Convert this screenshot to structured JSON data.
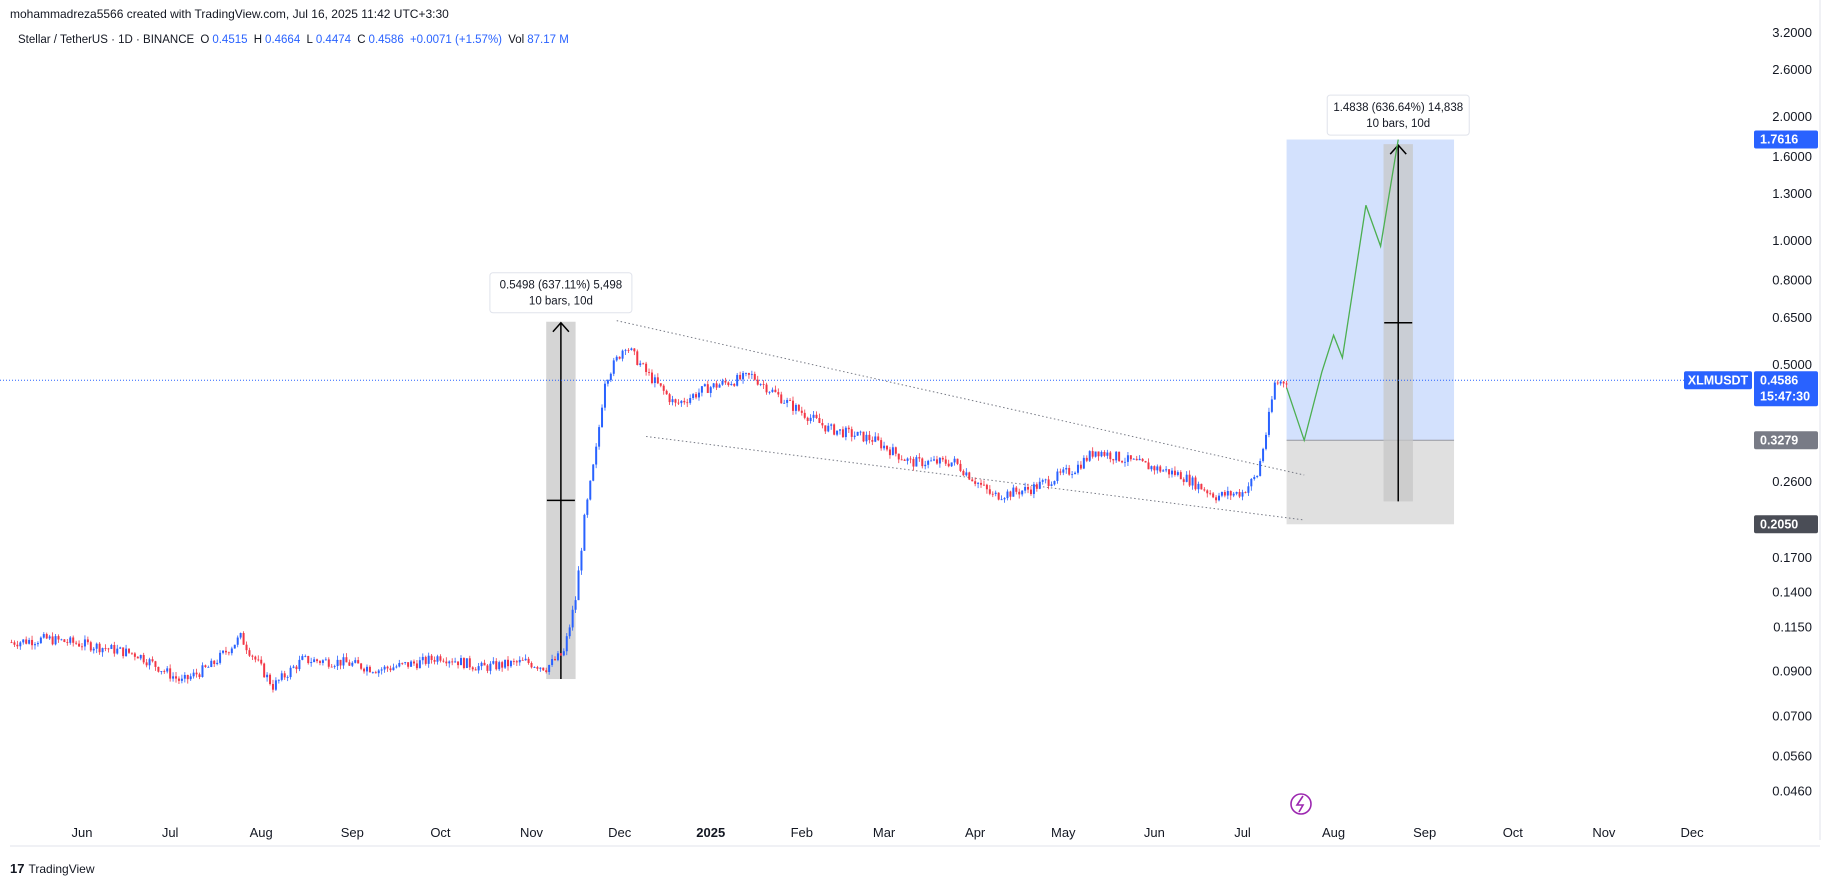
{
  "header": {
    "attribution": "mohammadreza5566 created with TradingView.com, Jul 16, 2025 11:42 UTC+3:30",
    "symbol": "Stellar / TetherUS · 1D · BINANCE",
    "o_label": "O",
    "o_value": "0.4515",
    "h_label": "H",
    "h_value": "0.4664",
    "l_label": "L",
    "l_value": "0.4474",
    "c_label": "C",
    "c_value": "0.4586",
    "change": "+0.0071 (+1.57%)",
    "vol_label": "Vol",
    "vol_value": "87.17 M"
  },
  "footer": {
    "logo_text": "TradingView",
    "logo_mark": "17"
  },
  "colors": {
    "up": "#2962ff",
    "down": "#f23645",
    "projection": "#4caf50",
    "target_zone": "#d3e1fd",
    "stop_zone": "#e0e0e0",
    "dotted": "#787b86",
    "measure_bg": "#c7c7c7",
    "label_bg": "#2962ff",
    "label_gray": "#787b86",
    "label_dark": "#4a4d56"
  },
  "chart_data": {
    "type": "candlestick",
    "y_scale": "log",
    "y_range": [
      0.0415,
      3.25
    ],
    "y_ticks": [
      "3.2000",
      "2.6000",
      "2.0000",
      "1.6000",
      "1.3000",
      "1.0000",
      "0.8000",
      "0.6500",
      "0.5000",
      "0.2600",
      "0.1700",
      "0.1400",
      "0.1150",
      "0.0900",
      "0.0700",
      "0.0560",
      "0.0460"
    ],
    "x_ticks": [
      {
        "label": "Jun",
        "date": "2024-06-01",
        "bold": false
      },
      {
        "label": "Jul",
        "date": "2024-07-01",
        "bold": false
      },
      {
        "label": "Aug",
        "date": "2024-08-01",
        "bold": false
      },
      {
        "label": "Sep",
        "date": "2024-09-01",
        "bold": false
      },
      {
        "label": "Oct",
        "date": "2024-10-01",
        "bold": false
      },
      {
        "label": "Nov",
        "date": "2024-11-01",
        "bold": false
      },
      {
        "label": "Dec",
        "date": "2024-12-01",
        "bold": false
      },
      {
        "label": "2025",
        "date": "2025-01-01",
        "bold": true
      },
      {
        "label": "Feb",
        "date": "2025-02-01",
        "bold": false
      },
      {
        "label": "Mar",
        "date": "2025-03-01",
        "bold": false
      },
      {
        "label": "Apr",
        "date": "2025-04-01",
        "bold": false
      },
      {
        "label": "May",
        "date": "2025-05-01",
        "bold": false
      },
      {
        "label": "Jun",
        "date": "2025-06-01",
        "bold": false
      },
      {
        "label": "Jul",
        "date": "2025-07-01",
        "bold": false
      },
      {
        "label": "Aug",
        "date": "2025-08-01",
        "bold": false
      },
      {
        "label": "Sep",
        "date": "2025-09-01",
        "bold": false
      },
      {
        "label": "Oct",
        "date": "2025-10-01",
        "bold": false
      },
      {
        "label": "Nov",
        "date": "2025-11-01",
        "bold": false
      },
      {
        "label": "Dec",
        "date": "2025-12-01",
        "bold": false
      }
    ],
    "price_path": [
      [
        "2024-05-08",
        0.106
      ],
      [
        "2024-05-20",
        0.108
      ],
      [
        "2024-06-05",
        0.104
      ],
      [
        "2024-06-20",
        0.099
      ],
      [
        "2024-07-05",
        0.085
      ],
      [
        "2024-07-15",
        0.093
      ],
      [
        "2024-07-25",
        0.109
      ],
      [
        "2024-08-05",
        0.083
      ],
      [
        "2024-08-15",
        0.096
      ],
      [
        "2024-08-28",
        0.095
      ],
      [
        "2024-09-10",
        0.091
      ],
      [
        "2024-09-25",
        0.095
      ],
      [
        "2024-10-01",
        0.098
      ],
      [
        "2024-10-15",
        0.092
      ],
      [
        "2024-10-30",
        0.095
      ],
      [
        "2024-11-06",
        0.092
      ],
      [
        "2024-11-12",
        0.1
      ],
      [
        "2024-11-16",
        0.135
      ],
      [
        "2024-11-19",
        0.21
      ],
      [
        "2024-11-23",
        0.31
      ],
      [
        "2024-11-26",
        0.46
      ],
      [
        "2024-12-03",
        0.56
      ],
      [
        "2024-12-10",
        0.48
      ],
      [
        "2024-12-20",
        0.4
      ],
      [
        "2024-12-31",
        0.44
      ],
      [
        "2025-01-15",
        0.47
      ],
      [
        "2025-01-28",
        0.4
      ],
      [
        "2025-02-10",
        0.35
      ],
      [
        "2025-02-25",
        0.33
      ],
      [
        "2025-03-10",
        0.29
      ],
      [
        "2025-03-25",
        0.29
      ],
      [
        "2025-04-07",
        0.24
      ],
      [
        "2025-04-20",
        0.25
      ],
      [
        "2025-05-05",
        0.28
      ],
      [
        "2025-05-12",
        0.31
      ],
      [
        "2025-05-25",
        0.29
      ],
      [
        "2025-06-10",
        0.27
      ],
      [
        "2025-06-22",
        0.24
      ],
      [
        "2025-07-01",
        0.245
      ],
      [
        "2025-07-06",
        0.27
      ],
      [
        "2025-07-09",
        0.34
      ],
      [
        "2025-07-12",
        0.45
      ],
      [
        "2025-07-16",
        0.4586
      ]
    ],
    "wedge_upper": [
      [
        "2024-11-30",
        0.64
      ],
      [
        "2025-07-22",
        0.27
      ]
    ],
    "wedge_lower": [
      [
        "2024-12-10",
        0.335
      ],
      [
        "2025-07-22",
        0.21
      ]
    ],
    "projection": [
      [
        "2025-07-16",
        0.44
      ],
      [
        "2025-07-22",
        0.3279
      ],
      [
        "2025-07-28",
        0.48
      ],
      [
        "2025-08-01",
        0.59
      ],
      [
        "2025-08-04",
        0.52
      ],
      [
        "2025-08-12",
        1.22
      ],
      [
        "2025-08-17",
        0.97
      ],
      [
        "2025-08-23",
        1.7616
      ]
    ],
    "measure_past": {
      "start": "2024-11-06",
      "end": "2024-11-16",
      "low": 0.0863,
      "high": 0.6361,
      "label1": "0.5498 (637.11%) 5,498",
      "label2": "10 bars, 10d"
    },
    "measure_future": {
      "start": "2025-08-18",
      "end": "2025-08-28",
      "low": 0.233,
      "high": 1.7168,
      "label1": "1.4838 (636.64%) 14,838",
      "label2": "10 bars, 10d"
    },
    "position": {
      "start": "2025-07-16",
      "end": "2025-09-11",
      "entry": 0.3279,
      "target": 1.7616,
      "stop": 0.205
    },
    "price_labels": {
      "current": "0.4586",
      "countdown": "15:47:30",
      "symbol": "XLMUSDT",
      "target": "1.7616",
      "entry": "0.3279",
      "stop": "0.2050"
    }
  }
}
